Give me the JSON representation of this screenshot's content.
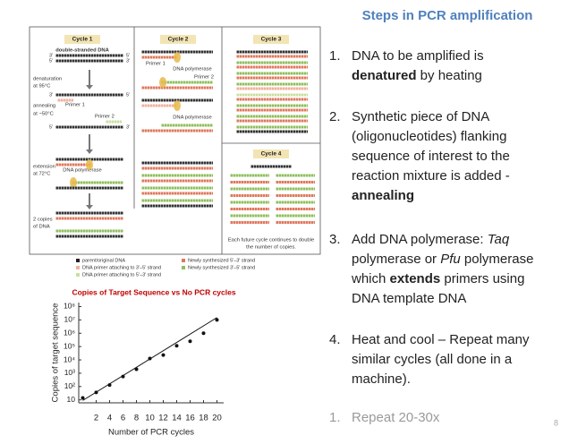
{
  "title": "Steps in PCR amplification",
  "steps": [
    {
      "number": "1.",
      "lines": [
        [
          {
            "text": "DNA to be amplified is"
          }
        ],
        [
          {
            "text": "denatured",
            "bold": true
          },
          {
            "text": " by heating"
          }
        ]
      ]
    },
    {
      "number": "2.",
      "lines": [
        [
          {
            "text": "Synthetic piece of DNA"
          }
        ],
        [
          {
            "text": "(oligonucleotides) flanking"
          }
        ],
        [
          {
            "text": "sequence of interest to the"
          }
        ],
        [
          {
            "text": "reaction mixture is added -"
          }
        ],
        [
          {
            "text": "annealing",
            "bold": true
          }
        ]
      ]
    },
    {
      "number": "3.",
      "lines": [
        [
          {
            "text": "Add DNA polymerase: "
          },
          {
            "text": "Taq",
            "italic": true
          }
        ],
        [
          {
            "text": "polymerase or "
          },
          {
            "text": "Pfu",
            "italic": true
          },
          {
            "text": " polymerase"
          }
        ],
        [
          {
            "text": "which "
          },
          {
            "text": "extends",
            "bold": true
          },
          {
            "text": " primers using"
          }
        ],
        [
          {
            "text": "DNA template DNA"
          }
        ]
      ]
    },
    {
      "number": "4.",
      "lines": [
        [
          {
            "text": "Heat and cool – Repeat many"
          }
        ],
        [
          {
            "text": "similar cycles (all done in a"
          }
        ],
        [
          {
            "text": "machine)."
          }
        ]
      ]
    },
    {
      "number": "1.",
      "color": "#9a9a9a",
      "lines": [
        [
          {
            "text": "Repeat 20-30x"
          }
        ]
      ]
    }
  ],
  "page_number": "8",
  "diagram": {
    "cycles": [
      "Cycle 1",
      "Cycle 2",
      "Cycle 3",
      "Cycle 4"
    ],
    "labels": [
      "double-stranded DNA",
      "denaturation",
      "at 95°C",
      "annealing",
      "at ~50°C",
      "Primer 1",
      "Primer 2",
      "extension",
      "at 72°C",
      "DNA polymerase",
      "2 copies",
      "of DNA",
      "Primer 1",
      "DNA polymerase",
      "Primer 2",
      "DNA polymerase",
      "Each future cycle continues to double",
      "the number of copies."
    ],
    "ends": [
      "3'",
      "5'",
      "5'",
      "3'",
      "3'",
      "5'",
      "5'",
      "3'"
    ],
    "legend": [
      {
        "text": "parent/original DNA",
        "color": "#222222"
      },
      {
        "text": "Newly synthesized 5'–3' strand",
        "color": "#e0785c"
      },
      {
        "text": "DNA primer attaching to 3'–5' strand",
        "color": "#f0b09c"
      },
      {
        "text": "Newly synthesized 3'–5' strand",
        "color": "#8fbf5c"
      },
      {
        "text": "DNA primer attaching to 5'–3' strand",
        "color": "#c9e0a0"
      }
    ]
  },
  "chart_data": {
    "type": "scatter",
    "title": "Copies of Target Sequence vs No PCR cycles",
    "x_label": "Number of PCR cycles",
    "y_label": "Copies of target sequence",
    "log_y": true,
    "series": [
      {
        "x": [
          0,
          2,
          4,
          6,
          8,
          10,
          12,
          14,
          16,
          18,
          20
        ],
        "values": [
          14,
          36,
          130,
          560,
          2000,
          12600,
          23000,
          115000,
          250000,
          1000000,
          10000000
        ],
        "color": "#111111",
        "mode": "markers"
      },
      {
        "x": [
          0,
          20
        ],
        "values": [
          9,
          15000000
        ],
        "color": "#111111",
        "mode": "line"
      }
    ],
    "xlim": [
      -0.6,
      21
    ],
    "xticks": [
      2,
      4,
      6,
      8,
      10,
      12,
      14,
      16,
      18,
      20
    ],
    "ylim": [
      6,
      200000000
    ],
    "yticks": [
      10,
      {
        "value": 100,
        "label": "10²"
      },
      {
        "value": 1000,
        "label": "10³"
      },
      {
        "value": 10000,
        "label": "10⁴"
      },
      {
        "value": 100000,
        "label": "10⁵"
      },
      {
        "value": 1000000,
        "label": "10⁶"
      },
      {
        "value": 10000000,
        "label": "10⁷"
      },
      {
        "value": 100000000,
        "label": "10⁸"
      }
    ]
  }
}
